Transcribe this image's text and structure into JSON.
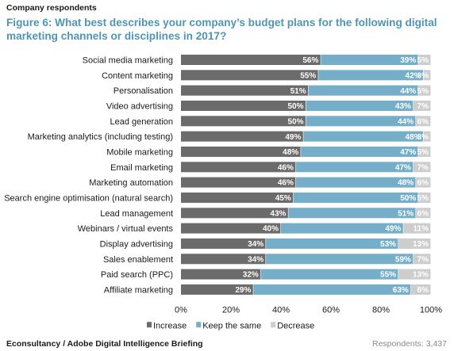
{
  "header": {
    "subtitle": "Company respondents",
    "title": "Figure 6: What best describes your company’s budget plans for the following digital marketing channels or disciplines in 2017?"
  },
  "footer": {
    "source": "Econsultancy / Adobe Digital Intelligence Briefing",
    "respondents": "Respondents: 3,437"
  },
  "chart_data": {
    "type": "bar",
    "orientation": "horizontal",
    "stacked": true,
    "percent_stacked": true,
    "categories": [
      "Social media marketing",
      "Content marketing",
      "Personalisation",
      "Video advertising",
      "Lead generation",
      "Marketing analytics (including testing)",
      "Mobile marketing",
      "Email marketing",
      "Marketing automation",
      "Search engine optimisation (natural search)",
      "Lead management",
      "Webinars / virtual events",
      "Display advertising",
      "Sales enablement",
      "Paid search (PPC)",
      "Affiliate marketing"
    ],
    "series": [
      {
        "name": "Increase",
        "color": "#6b6b6b",
        "values": [
          56,
          55,
          51,
          50,
          50,
          49,
          48,
          46,
          46,
          45,
          43,
          40,
          34,
          34,
          32,
          29
        ]
      },
      {
        "name": "Keep the same",
        "color": "#75aec8",
        "values": [
          39,
          42,
          44,
          43,
          44,
          48,
          47,
          47,
          48,
          50,
          51,
          49,
          53,
          59,
          55,
          63
        ]
      },
      {
        "name": "Decrease",
        "color": "#cdcdcd",
        "values": [
          5,
          3,
          5,
          7,
          6,
          3,
          5,
          7,
          6,
          5,
          6,
          11,
          13,
          7,
          13,
          8
        ]
      }
    ],
    "xlim": [
      0,
      100
    ],
    "x_ticks": [
      "0%",
      "20%",
      "40%",
      "60%",
      "80%",
      "100%"
    ],
    "grid": false,
    "legend_position": "bottom"
  }
}
